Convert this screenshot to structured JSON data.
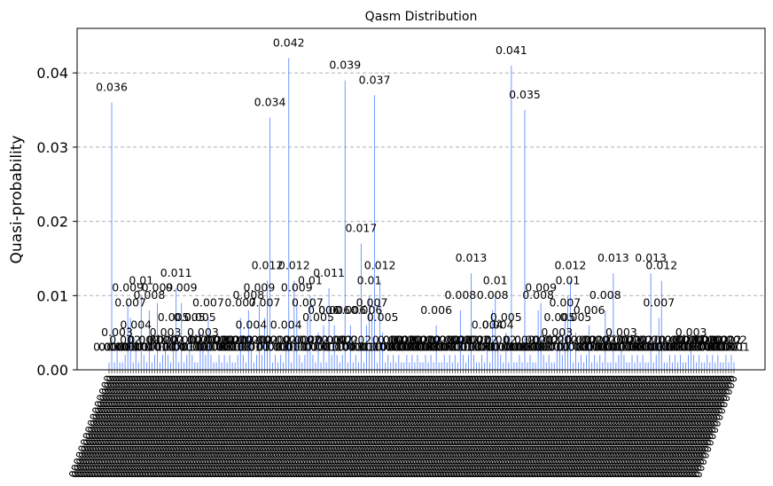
{
  "chart_data": {
    "type": "bar",
    "title": "Qasm Distribution",
    "ylabel": "Quasi-probability",
    "ylim": [
      0,
      0.046
    ],
    "yticks": [
      "0.00",
      "0.01",
      "0.02",
      "0.03",
      "0.04"
    ],
    "ytick_values": [
      0,
      0.01,
      0.02,
      0.03,
      0.04
    ],
    "grid": "y-dashed",
    "bar_color": "#648fff",
    "bar_count": 234,
    "xtick_label_sample": "0000000000000000",
    "labeled_bars": [
      {
        "index": 1,
        "value": 0.036,
        "label": "0.036"
      },
      {
        "index": 60,
        "value": 0.034,
        "label": "0.034"
      },
      {
        "index": 67,
        "value": 0.042,
        "label": "0.042"
      },
      {
        "index": 88,
        "value": 0.039,
        "label": "0.039"
      },
      {
        "index": 99,
        "value": 0.037,
        "label": "0.037"
      },
      {
        "index": 94,
        "value": 0.017,
        "label": "0.017"
      },
      {
        "index": 150,
        "value": 0.041,
        "label": "0.041"
      },
      {
        "index": 155,
        "value": 0.035,
        "label": "0.035"
      },
      {
        "index": 135,
        "value": 0.013,
        "label": "0.013"
      },
      {
        "index": 188,
        "value": 0.013,
        "label": "0.013"
      },
      {
        "index": 202,
        "value": 0.013,
        "label": "0.013"
      },
      {
        "index": 206,
        "value": 0.012,
        "label": "0.012"
      },
      {
        "index": 172,
        "value": 0.012,
        "label": "0.012"
      },
      {
        "index": 59,
        "value": 0.012,
        "label": "0.012"
      },
      {
        "index": 69,
        "value": 0.012,
        "label": "0.012"
      },
      {
        "index": 101,
        "value": 0.012,
        "label": "0.012"
      },
      {
        "index": 25,
        "value": 0.011,
        "label": "0.011"
      },
      {
        "index": 82,
        "value": 0.011,
        "label": "0.011"
      },
      {
        "index": 12,
        "value": 0.01,
        "label": "0.01"
      },
      {
        "index": 75,
        "value": 0.01,
        "label": "0.01"
      },
      {
        "index": 97,
        "value": 0.01,
        "label": "0.01"
      },
      {
        "index": 144,
        "value": 0.01,
        "label": "0.01"
      },
      {
        "index": 171,
        "value": 0.01,
        "label": "0.01"
      },
      {
        "index": 7,
        "value": 0.009,
        "label": "0.009"
      },
      {
        "index": 18,
        "value": 0.009,
        "label": "0.009"
      },
      {
        "index": 27,
        "value": 0.009,
        "label": "0.009"
      },
      {
        "index": 56,
        "value": 0.009,
        "label": "0.009"
      },
      {
        "index": 70,
        "value": 0.009,
        "label": "0.009"
      },
      {
        "index": 161,
        "value": 0.009,
        "label": "0.009"
      },
      {
        "index": 15,
        "value": 0.008,
        "label": "0.008"
      },
      {
        "index": 52,
        "value": 0.008,
        "label": "0.008"
      },
      {
        "index": 56,
        "value": 0.008,
        "label": "0.008"
      },
      {
        "index": 60,
        "value": 0.008,
        "label": "0.008"
      },
      {
        "index": 131,
        "value": 0.008,
        "label": "0.008"
      },
      {
        "index": 143,
        "value": 0.008,
        "label": "0.008"
      },
      {
        "index": 150,
        "value": 0.008,
        "label": "0.008"
      },
      {
        "index": 160,
        "value": 0.008,
        "label": "0.008"
      },
      {
        "index": 185,
        "value": 0.008,
        "label": "0.008"
      },
      {
        "index": 8,
        "value": 0.007,
        "label": "0.007"
      },
      {
        "index": 37,
        "value": 0.007,
        "label": "0.007"
      },
      {
        "index": 49,
        "value": 0.007,
        "label": "0.007"
      },
      {
        "index": 58,
        "value": 0.007,
        "label": "0.007"
      },
      {
        "index": 74,
        "value": 0.007,
        "label": "0.007"
      },
      {
        "index": 98,
        "value": 0.007,
        "label": "0.007"
      },
      {
        "index": 160,
        "value": 0.007,
        "label": "0.007"
      },
      {
        "index": 170,
        "value": 0.007,
        "label": "0.007"
      },
      {
        "index": 205,
        "value": 0.007,
        "label": "0.007"
      },
      {
        "index": 52,
        "value": 0.006,
        "label": "0.006"
      },
      {
        "index": 56,
        "value": 0.006,
        "label": "0.006"
      },
      {
        "index": 80,
        "value": 0.006,
        "label": "0.006"
      },
      {
        "index": 84,
        "value": 0.006,
        "label": "0.006"
      },
      {
        "index": 90,
        "value": 0.006,
        "label": "0.006"
      },
      {
        "index": 96,
        "value": 0.006,
        "label": "0.006"
      },
      {
        "index": 122,
        "value": 0.006,
        "label": "0.006"
      },
      {
        "index": 179,
        "value": 0.006,
        "label": "0.006"
      },
      {
        "index": 24,
        "value": 0.005,
        "label": "0.005"
      },
      {
        "index": 30,
        "value": 0.005,
        "label": "0.005"
      },
      {
        "index": 34,
        "value": 0.005,
        "label": "0.005"
      },
      {
        "index": 78,
        "value": 0.005,
        "label": "0.005"
      },
      {
        "index": 102,
        "value": 0.005,
        "label": "0.005"
      },
      {
        "index": 148,
        "value": 0.005,
        "label": "0.005"
      },
      {
        "index": 168,
        "value": 0.005,
        "label": "0.005"
      },
      {
        "index": 174,
        "value": 0.005,
        "label": "0.005"
      },
      {
        "index": 10,
        "value": 0.004,
        "label": "0.004"
      },
      {
        "index": 53,
        "value": 0.004,
        "label": "0.004"
      },
      {
        "index": 66,
        "value": 0.004,
        "label": "0.004"
      },
      {
        "index": 96,
        "value": 0.004,
        "label": "0.004"
      },
      {
        "index": 141,
        "value": 0.004,
        "label": "0.004"
      },
      {
        "index": 145,
        "value": 0.004,
        "label": "0.004"
      },
      {
        "index": 3,
        "value": 0.003,
        "label": "0.003"
      },
      {
        "index": 21,
        "value": 0.003,
        "label": "0.003"
      },
      {
        "index": 35,
        "value": 0.003,
        "label": "0.003"
      },
      {
        "index": 90,
        "value": 0.003,
        "label": "0.003"
      },
      {
        "index": 167,
        "value": 0.003,
        "label": "0.003"
      },
      {
        "index": 191,
        "value": 0.003,
        "label": "0.003"
      },
      {
        "index": 217,
        "value": 0.003,
        "label": "0.003"
      }
    ]
  }
}
